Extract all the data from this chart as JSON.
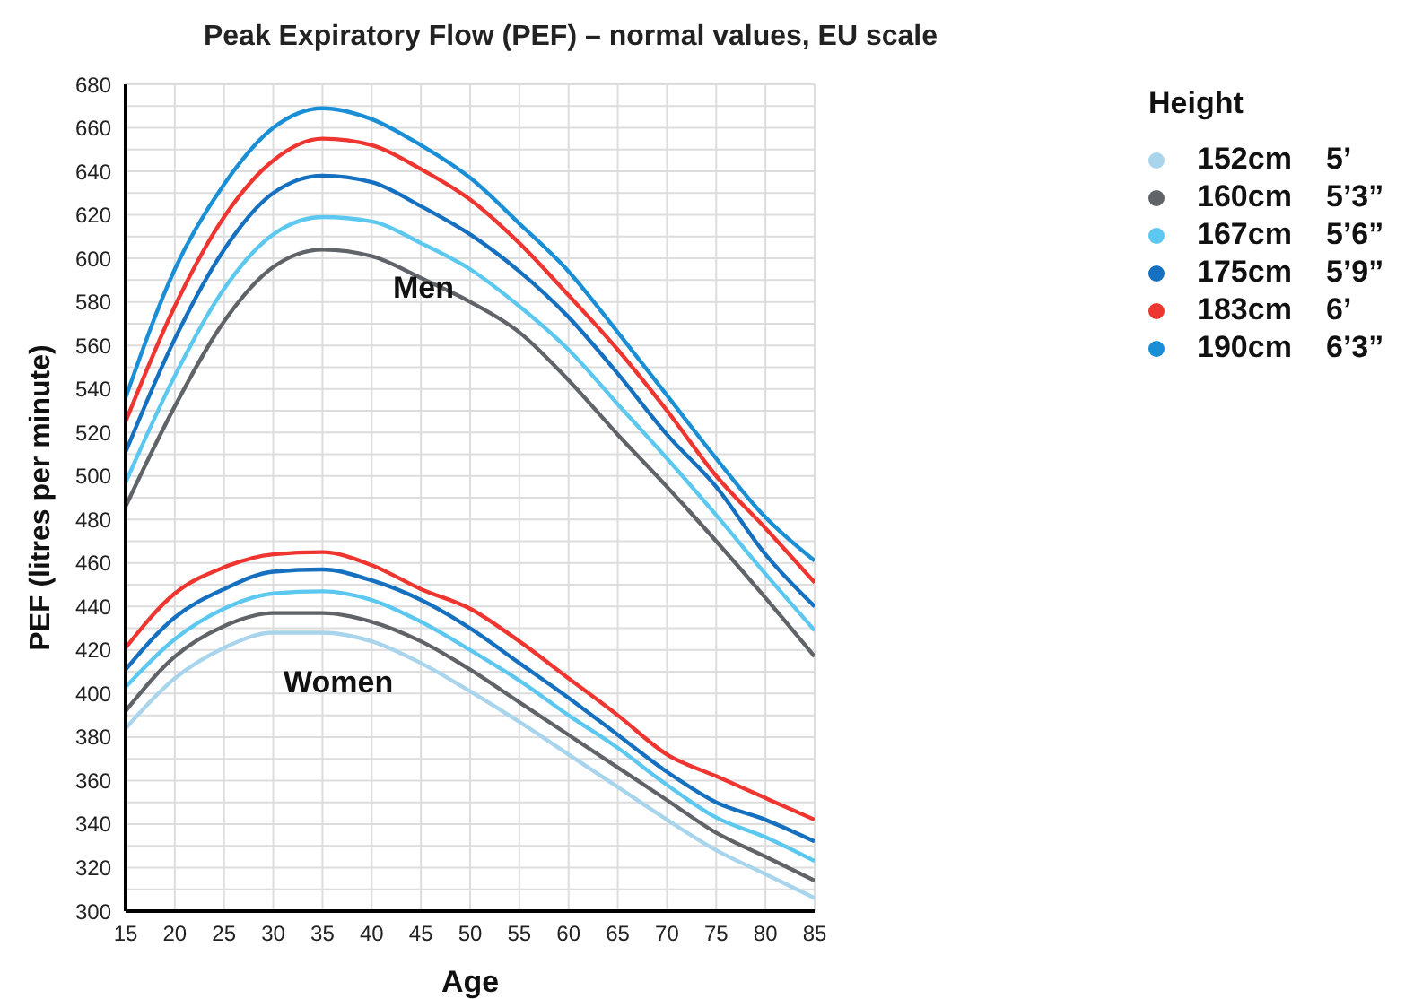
{
  "chart_data": {
    "type": "line",
    "title": "Peak Expiratory Flow (PEF) – normal values, EU scale",
    "xlabel": "Age",
    "ylabel": "PEF (litres per minute)",
    "legend_title": "Height",
    "legend": "right",
    "grid": true,
    "marker": "none",
    "line_style": "solid",
    "x": [
      15,
      20,
      25,
      30,
      35,
      40,
      45,
      50,
      55,
      60,
      65,
      70,
      75,
      80,
      85
    ],
    "xlim": [
      15,
      85
    ],
    "xticks": [
      15,
      20,
      25,
      30,
      35,
      40,
      45,
      50,
      55,
      60,
      65,
      70,
      75,
      80,
      85
    ],
    "ylim": [
      300,
      680
    ],
    "yticks": [
      300,
      {
        "value": 310,
        "label": null
      },
      320,
      {
        "value": 330,
        "label": null
      },
      340,
      {
        "value": 350,
        "label": null
      },
      360,
      {
        "value": 370,
        "label": null
      },
      380,
      {
        "value": 390,
        "label": null
      },
      400,
      {
        "value": 410,
        "label": null
      },
      420,
      {
        "value": 430,
        "label": null
      },
      440,
      {
        "value": 450,
        "label": null
      },
      460,
      {
        "value": 470,
        "label": null
      },
      480,
      {
        "value": 490,
        "label": null
      },
      500,
      {
        "value": 510,
        "label": null
      },
      520,
      {
        "value": 530,
        "label": null
      },
      540,
      {
        "value": 550,
        "label": null
      },
      560,
      {
        "value": 570,
        "label": null
      },
      580,
      {
        "value": 590,
        "label": null
      },
      600,
      {
        "value": 610,
        "label": null
      },
      620,
      {
        "value": 630,
        "label": null
      },
      640,
      {
        "value": 650,
        "label": null
      },
      660,
      {
        "value": 670,
        "label": null
      },
      680
    ],
    "series": [
      {
        "name": "190cm 6’3”",
        "color": "#1a8fd6",
        "values": [
          536,
          595,
          634,
          660,
          669,
          664,
          652,
          637,
          616,
          594,
          566,
          537,
          508,
          481,
          461
        ]
      },
      {
        "name": "183cm 6’",
        "color": "#ee3530",
        "values": [
          525,
          578,
          619,
          645,
          655,
          652,
          641,
          627,
          607,
          583,
          558,
          530,
          500,
          476,
          451
        ]
      },
      {
        "name": "175cm 5’9”",
        "color": "#1570c0",
        "values": [
          511,
          563,
          604,
          630,
          638,
          635,
          624,
          611,
          594,
          573,
          547,
          519,
          495,
          464,
          440
        ]
      },
      {
        "name": "167cm 5’6”",
        "color": "#5cc8f0",
        "values": [
          497,
          546,
          586,
          611,
          619,
          617,
          607,
          595,
          578,
          558,
          533,
          508,
          482,
          455,
          429
        ]
      },
      {
        "name": "160cm 5’3”",
        "color": "#606468",
        "values": [
          486,
          532,
          571,
          596,
          604,
          601,
          591,
          580,
          566,
          544,
          519,
          495,
          470,
          444,
          417
        ]
      },
      {
        "color": "#ee3530",
        "values": [
          421,
          446,
          458,
          464,
          465,
          459,
          448,
          439,
          424,
          407,
          390,
          372,
          362,
          352,
          342
        ]
      },
      {
        "color": "#1570c0",
        "values": [
          411,
          435,
          448,
          456,
          457,
          452,
          443,
          430,
          414,
          398,
          381,
          364,
          350,
          342,
          332
        ]
      },
      {
        "color": "#5cc8f0",
        "values": [
          403,
          425,
          439,
          446,
          447,
          443,
          433,
          420,
          406,
          390,
          375,
          358,
          343,
          334,
          323
        ]
      },
      {
        "color": "#606468",
        "values": [
          392,
          417,
          431,
          437,
          437,
          433,
          424,
          411,
          396,
          381,
          366,
          351,
          336,
          325,
          314
        ]
      },
      {
        "name": "152cm 5’",
        "color": "#a8d4ec",
        "values": [
          384,
          407,
          421,
          428,
          428,
          424,
          414,
          401,
          387,
          372,
          357,
          342,
          328,
          317,
          306
        ]
      }
    ],
    "annotations": [
      "Men",
      "Women"
    ]
  }
}
